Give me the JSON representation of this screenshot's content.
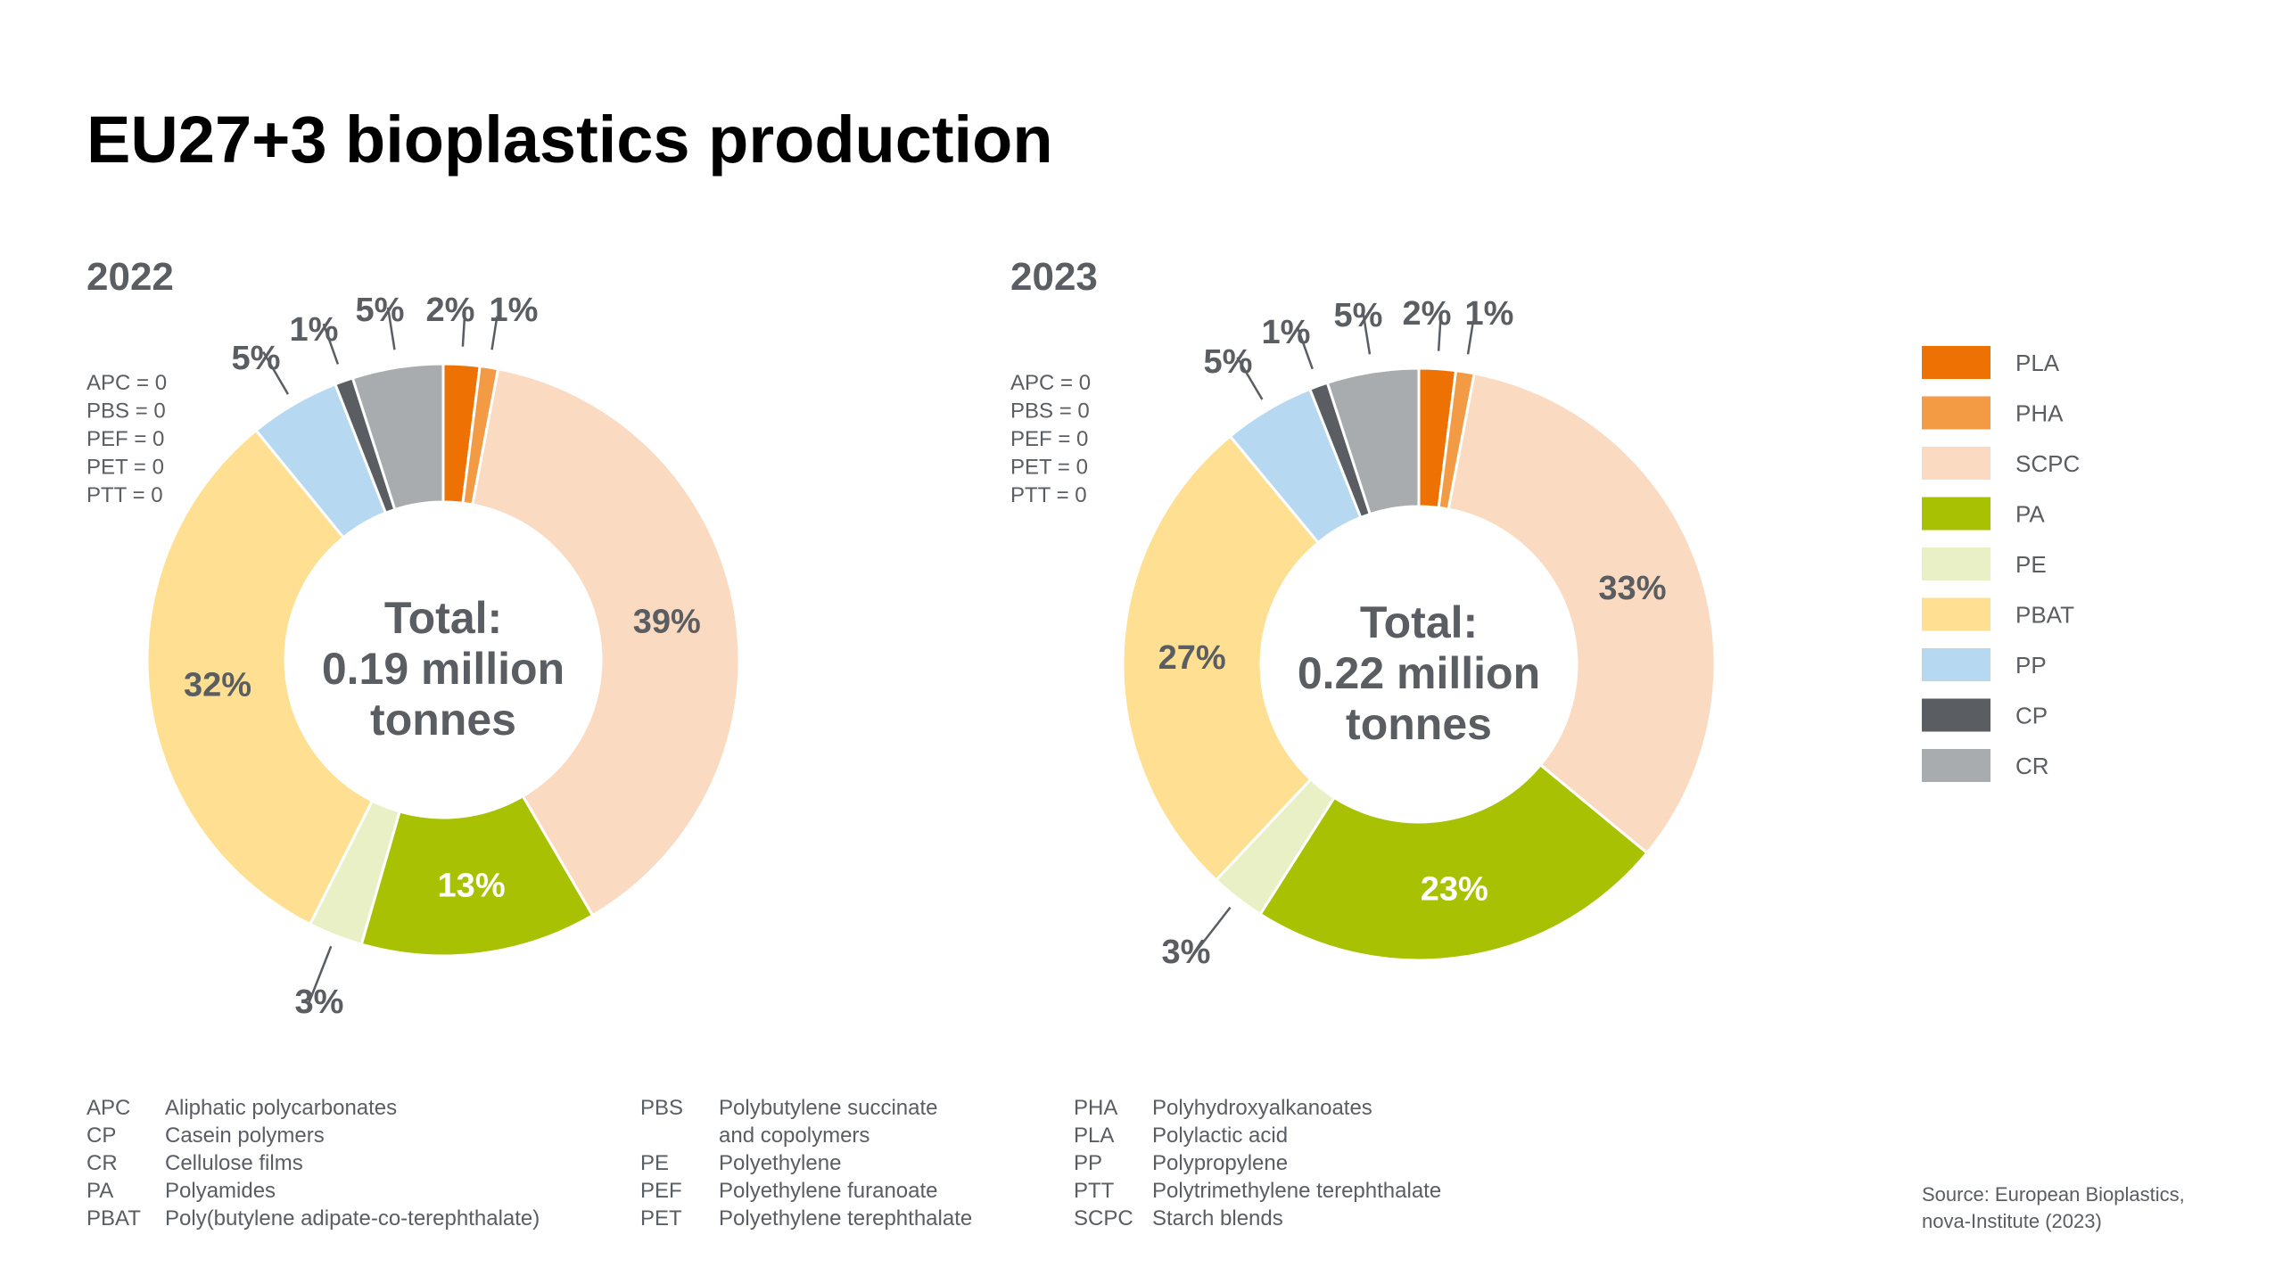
{
  "page": {
    "title": "EU27+3 bioplastics production"
  },
  "colors": {
    "PLA": "#ee7203",
    "PHA": "#f39a45",
    "SCPC": "#fadbc1",
    "PA": "#a8c102",
    "PE": "#e9f0c6",
    "PBAT": "#ffdf91",
    "PP": "#b7d8f1",
    "CP": "#5a5d61",
    "CR": "#a9acaf"
  },
  "chart_data": [
    {
      "type": "pie",
      "title": "2022",
      "center_text": [
        "Total:",
        "0.19 million",
        "tonnes"
      ],
      "zero_values": [
        "APC = 0",
        "PBS = 0",
        "PEF = 0",
        "PET = 0",
        "PTT = 0"
      ],
      "labels": [
        "PLA",
        "PHA",
        "SCPC",
        "PA",
        "PE",
        "PBAT",
        "PP",
        "CP",
        "CR"
      ],
      "values": [
        2,
        1,
        39,
        13,
        3,
        32,
        5,
        1,
        5
      ],
      "value_labels": [
        "2%",
        "1%",
        "39%",
        "13%",
        "3%",
        "32%",
        "5%",
        "1%",
        "5%"
      ]
    },
    {
      "type": "pie",
      "title": "2023",
      "center_text": [
        "Total:",
        "0.22 million",
        "tonnes"
      ],
      "zero_values": [
        "APC = 0",
        "PBS = 0",
        "PEF = 0",
        "PET = 0",
        "PTT = 0"
      ],
      "labels": [
        "PLA",
        "PHA",
        "SCPC",
        "PA",
        "PE",
        "PBAT",
        "PP",
        "CP",
        "CR"
      ],
      "values": [
        2,
        1,
        33,
        23,
        3,
        27,
        5,
        1,
        5
      ],
      "value_labels": [
        "2%",
        "1%",
        "33%",
        "23%",
        "3%",
        "27%",
        "5%",
        "1%",
        "5%"
      ]
    }
  ],
  "legend": [
    "PLA",
    "PHA",
    "SCPC",
    "PA",
    "PE",
    "PBAT",
    "PP",
    "CP",
    "CR"
  ],
  "abbreviations": [
    [
      {
        "abbr": "APC",
        "full": [
          "Aliphatic polycarbonates"
        ]
      },
      {
        "abbr": "CP",
        "full": [
          "Casein polymers"
        ]
      },
      {
        "abbr": "CR",
        "full": [
          "Cellulose films"
        ]
      },
      {
        "abbr": "PA",
        "full": [
          "Polyamides"
        ]
      },
      {
        "abbr": "PBAT",
        "full": [
          "Poly(butylene adipate-co-terephthalate)"
        ]
      }
    ],
    [
      {
        "abbr": "PBS",
        "full": [
          "Polybutylene succinate",
          "and copolymers"
        ]
      },
      {
        "abbr": "PE",
        "full": [
          "Polyethylene"
        ]
      },
      {
        "abbr": "PEF",
        "full": [
          "Polyethylene furanoate"
        ]
      },
      {
        "abbr": "PET",
        "full": [
          "Polyethylene terephthalate"
        ]
      }
    ],
    [
      {
        "abbr": "PHA",
        "full": [
          "Polyhydroxyalkanoates"
        ]
      },
      {
        "abbr": "PLA",
        "full": [
          "Polylactic acid"
        ]
      },
      {
        "abbr": "PP",
        "full": [
          "Polypropylene"
        ]
      },
      {
        "abbr": "PTT",
        "full": [
          "Polytrimethylene terephthalate"
        ]
      },
      {
        "abbr": "SCPC",
        "full": [
          "Starch blends"
        ]
      }
    ]
  ],
  "source": [
    "Source: European Bioplastics,",
    "nova-Institute (2023)"
  ]
}
